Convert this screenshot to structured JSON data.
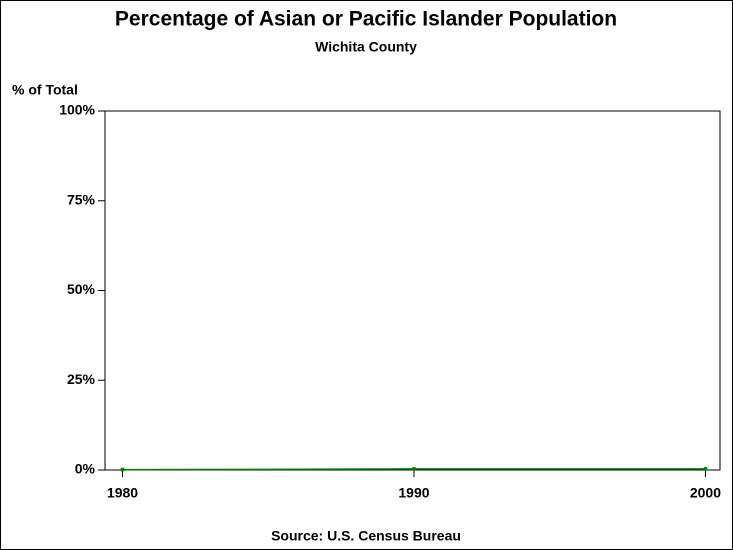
{
  "chart_data": {
    "type": "line",
    "title": "Percentage of Asian or Pacific Islander Population",
    "subtitle": "Wichita County",
    "y_label": "% of Total",
    "source": "Source: U.S. Census Bureau",
    "x": [
      1980,
      1990,
      2000
    ],
    "series": [
      {
        "name": "Wichita County",
        "color": "#008000",
        "values": [
          0.1,
          0.3,
          0.3
        ]
      }
    ],
    "xlim": [
      1979.4,
      2000.5
    ],
    "xticks": [
      1980,
      1990,
      2000
    ],
    "ylim": [
      0,
      100
    ],
    "yticks": [
      {
        "value": 0,
        "label": "0%"
      },
      {
        "value": 25,
        "label": "25%"
      },
      {
        "value": 50,
        "label": "50%"
      },
      {
        "value": 75,
        "label": "75%"
      },
      {
        "value": 100,
        "label": "100%"
      }
    ]
  }
}
